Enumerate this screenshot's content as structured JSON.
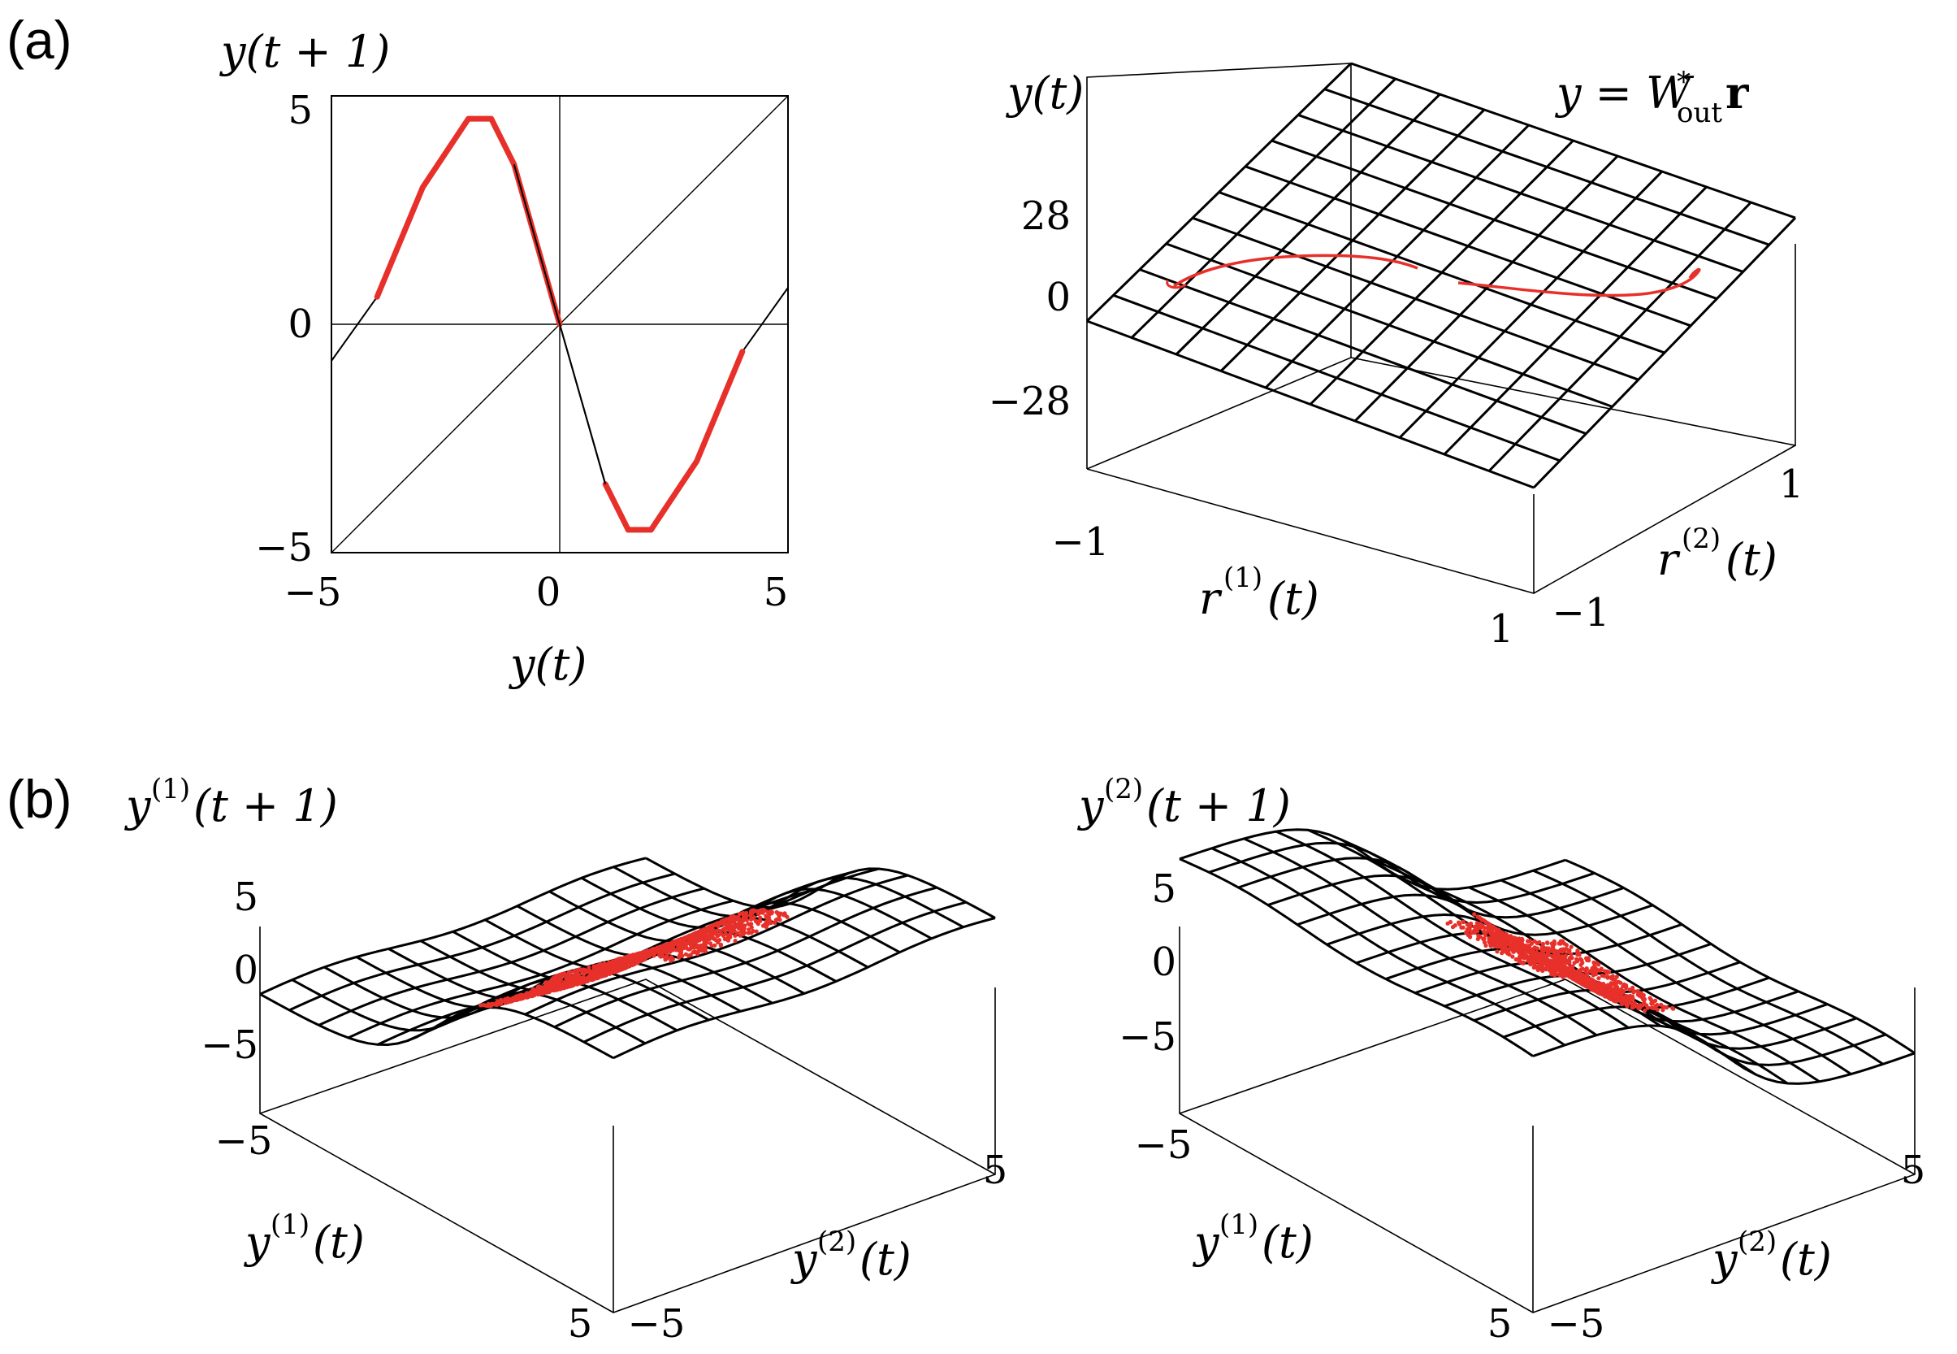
{
  "panels": {
    "a": {
      "label": "(a)",
      "left_plot": {
        "ylabel": "y(t + 1)",
        "xlabel": "y(t)",
        "yticks": [
          "5",
          "0",
          "−5"
        ],
        "xticks": [
          "−5",
          "0",
          "5"
        ]
      },
      "right_plot": {
        "zlabel": "y(t)",
        "equation": "y = W*out r",
        "zticks": [
          "28",
          "0",
          "−28"
        ],
        "xlabel": "r(1)(t)",
        "ylabel": "r(2)(t)",
        "xticks": [
          "−1",
          "1"
        ],
        "yticks": [
          "−1",
          "1"
        ]
      }
    },
    "b": {
      "label": "(b)",
      "left_plot": {
        "zlabel": "y(1)(t + 1)",
        "zticks": [
          "5",
          "0",
          "−5"
        ],
        "xlabel": "y(1)(t)",
        "ylabel": "y(2)(t)",
        "xticks": [
          "−5",
          "5"
        ],
        "yticks": [
          "−5",
          "5"
        ]
      },
      "right_plot": {
        "zlabel": "y(2)(t + 1)",
        "zticks": [
          "5",
          "0",
          "−5"
        ],
        "xlabel": "y(1)(t)",
        "ylabel": "y(2)(t)",
        "xticks": [
          "−5",
          "5"
        ],
        "yticks": [
          "−5",
          "5"
        ]
      }
    }
  },
  "colors": {
    "ink": "#000000",
    "highlight": "#e8302a"
  },
  "chart_data": [
    {
      "type": "line",
      "panel": "(a) left",
      "xlabel": "y(t)",
      "ylabel": "y(t + 1)",
      "xlim": [
        -5,
        5
      ],
      "ylim": [
        -5,
        5
      ],
      "series": [
        {
          "x": [
            -5,
            5
          ],
          "y": [
            -5,
            5
          ]
        },
        {
          "x": [
            -5,
            -4,
            -3,
            -2,
            -1.5,
            -1,
            0,
            1,
            1.5,
            2,
            3,
            4,
            5
          ],
          "y": [
            -0.8,
            0.6,
            3.0,
            4.5,
            4.5,
            3.5,
            0,
            -3.5,
            -4.5,
            -4.5,
            -3.0,
            -0.6,
            0.8
          ]
        }
      ]
    },
    {
      "type": "surface",
      "panel": "(a) right",
      "xlabel": "r(1)(t)",
      "ylabel": "r(2)(t)",
      "zlabel": "y(t)",
      "xlim": [
        -1,
        1
      ],
      "ylim": [
        -1,
        1
      ],
      "zlim": [
        -28,
        28
      ]
    },
    {
      "type": "surface",
      "panel": "(b) left",
      "xlabel": "y(1)(t)",
      "ylabel": "y(2)(t)",
      "zlabel": "y(1)(t + 1)",
      "xlim": [
        -5,
        5
      ],
      "ylim": [
        -5,
        5
      ],
      "zlim": [
        -5,
        5
      ]
    },
    {
      "type": "surface",
      "panel": "(b) right",
      "xlabel": "y(1)(t)",
      "ylabel": "y(2)(t)",
      "zlabel": "y(2)(t + 1)",
      "xlim": [
        -5,
        5
      ],
      "ylim": [
        -5,
        5
      ],
      "zlim": [
        -5,
        5
      ]
    }
  ]
}
